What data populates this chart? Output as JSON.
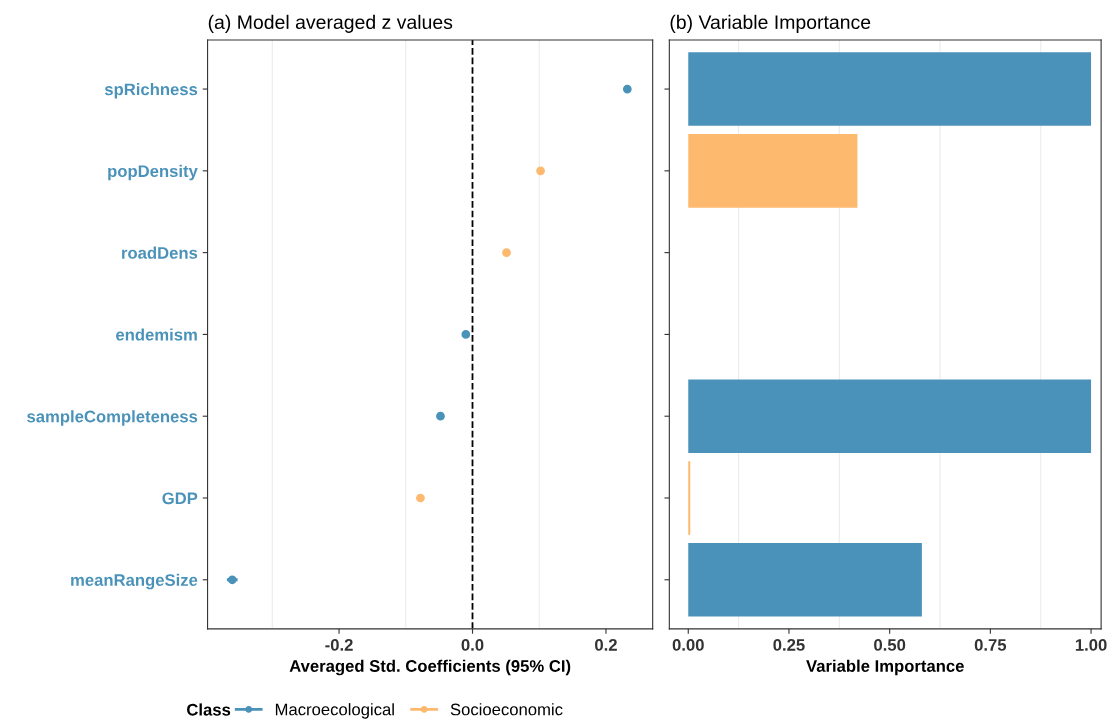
{
  "chart_data": [
    {
      "type": "scatter",
      "title": "(a) Model averaged z values",
      "xlabel": "Averaged Std. Coefficients (95% CI)",
      "orientation": "horizontal",
      "categories": [
        "spRichness",
        "popDensity",
        "roadDens",
        "endemism",
        "sampleCompleteness",
        "GDP",
        "meanRangeSize"
      ],
      "series": [
        {
          "name": "Macroecological",
          "color": "#4a92b9",
          "values": [
            0.232,
            null,
            null,
            -0.01,
            -0.048,
            null,
            -0.36
          ],
          "errors": [
            null,
            null,
            null,
            null,
            null,
            null,
            0.008
          ]
        },
        {
          "name": "Socioeconomic",
          "color": "#fdb96e",
          "values": [
            null,
            0.102,
            0.051,
            null,
            null,
            -0.078,
            null
          ],
          "errors": [
            null,
            null,
            null,
            null,
            null,
            null,
            null
          ]
        }
      ],
      "xlim": [
        -0.397,
        0.27
      ],
      "xticks": [
        -0.2,
        {
          "value": 0,
          "label": "0.0"
        },
        0.2
      ],
      "ref_lines": [
        {
          "axis": "x",
          "value": 0,
          "color": "#000000",
          "line_style": "dashed"
        }
      ],
      "grid": "x",
      "marker": "circle",
      "legend": "bottom",
      "legend_title": "Class"
    },
    {
      "type": "bar",
      "title": "(b) Variable Importance",
      "xlabel": "Variable Importance",
      "orientation": "horizontal",
      "categories": [
        null,
        null,
        null,
        null,
        null,
        null,
        null
      ],
      "values": [
        1.0,
        0.42,
        null,
        null,
        1.0,
        0.005,
        0.58
      ],
      "colors": [
        "#4a92b9",
        "#fdb96e",
        "#fdb96e",
        "#fdb96e",
        "#4a92b9",
        "#fdb96e",
        "#4a92b9"
      ],
      "xlim": [
        -0.047,
        1.025
      ],
      "xticks": [
        {
          "value": 0,
          "label": "0.00"
        },
        {
          "value": 0.25,
          "label": "0.25"
        },
        {
          "value": 0.5,
          "label": "0.50"
        },
        {
          "value": 0.75,
          "label": "0.75"
        },
        {
          "value": 1.0,
          "label": "1.00"
        }
      ],
      "grid": "x"
    }
  ]
}
